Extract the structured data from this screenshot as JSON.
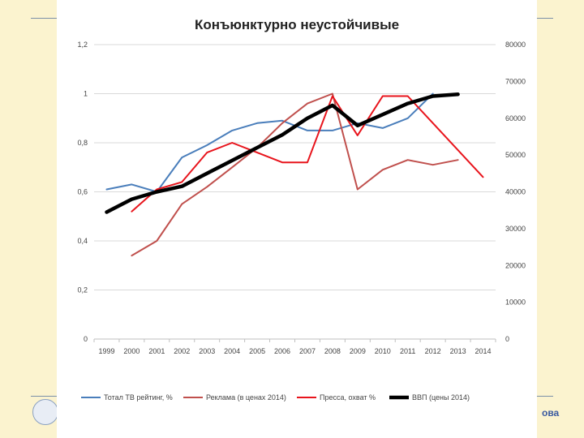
{
  "slide": {
    "brand_text": "ова"
  },
  "chart_data": {
    "type": "line",
    "title": "Конъюнктурно неустойчивые",
    "x": [
      "1999",
      "2000",
      "2001",
      "2002",
      "2003",
      "2004",
      "2005",
      "2006",
      "2007",
      "2008",
      "2009",
      "2010",
      "2011",
      "2012",
      "2013",
      "2014"
    ],
    "left_axis": {
      "ylim": [
        0,
        1.2
      ],
      "tick_labels": [
        "0",
        "0,2",
        "0,4",
        "0,6",
        "0,8",
        "1",
        "1,2"
      ]
    },
    "right_axis": {
      "ylim": [
        0,
        80000
      ],
      "tick_labels": [
        "0",
        "10000",
        "20000",
        "30000",
        "40000",
        "50000",
        "60000",
        "70000",
        "80000"
      ]
    },
    "grid": true,
    "legend_position": "bottom",
    "series": [
      {
        "name": "Тотал ТВ рейтинг, %",
        "axis": "left",
        "color": "#4a7ebb",
        "width": 2,
        "values": [
          0.61,
          0.63,
          0.6,
          0.74,
          0.79,
          0.85,
          0.88,
          0.89,
          0.85,
          0.85,
          0.88,
          0.86,
          0.9,
          1.0,
          null,
          null
        ]
      },
      {
        "name": "Реклама (в ценах 2014)",
        "axis": "left",
        "color": "#c0504d",
        "width": 2,
        "values": [
          null,
          0.34,
          0.4,
          0.55,
          0.62,
          0.7,
          0.78,
          0.88,
          0.96,
          1.0,
          0.61,
          0.69,
          0.73,
          0.71,
          0.73,
          null
        ]
      },
      {
        "name": "Пресса, охват %",
        "axis": "left",
        "color": "#e8141c",
        "width": 2,
        "values": [
          null,
          0.52,
          0.61,
          0.64,
          0.76,
          0.8,
          0.76,
          0.72,
          0.72,
          0.99,
          0.83,
          0.99,
          0.99,
          0.88,
          0.77,
          0.66
        ]
      },
      {
        "name": "ВВП (цены 2014)",
        "axis": "right",
        "color": "#000000",
        "width": 4.5,
        "values": [
          34500,
          38000,
          40000,
          41500,
          45000,
          48500,
          52000,
          55500,
          60000,
          63500,
          58000,
          61000,
          64000,
          66000,
          66500,
          null
        ]
      }
    ]
  }
}
